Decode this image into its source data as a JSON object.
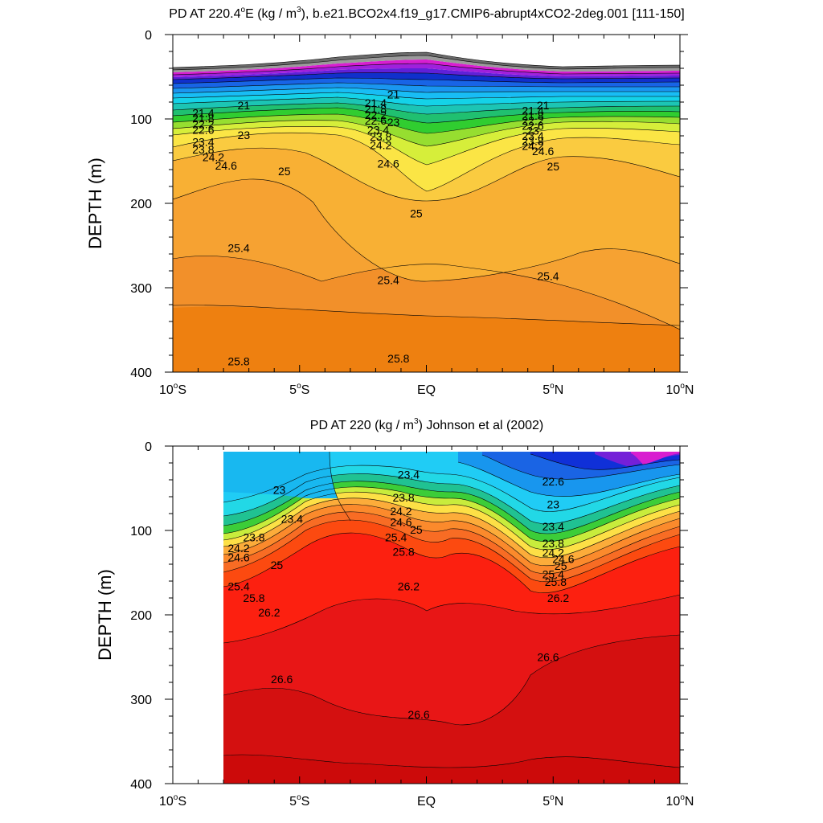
{
  "chart_data": [
    {
      "type": "filled-contour",
      "title": "PD AT 220.4°E (kg / m³), b.e21.BCO2x4.f19_g17.CMIP6-abrupt4xCO2-2deg.001 [111-150]",
      "title_parts": {
        "pre": "PD AT 220.4",
        "deg": "o",
        "mid": "E (kg / m",
        "sup": "3",
        "post": "), b.e21.BCO2x4.f19_g17.CMIP6-abrupt4xCO2-2deg.001 [111-150]"
      },
      "ylabel": "DEPTH (m)",
      "xlim": [
        -10,
        10
      ],
      "ylim": [
        0,
        400
      ],
      "y_inverted": true,
      "x_ticks": [
        {
          "value": -10,
          "num": "10",
          "hemi": "S"
        },
        {
          "value": -5,
          "num": "5",
          "hemi": "S"
        },
        {
          "value": 0,
          "num": "EQ",
          "hemi": ""
        },
        {
          "value": 5,
          "num": "5",
          "hemi": "N"
        },
        {
          "value": 10,
          "num": "10",
          "hemi": "N"
        }
      ],
      "y_ticks": [
        0,
        100,
        200,
        300,
        400
      ],
      "contour_labels": [
        {
          "text": "21",
          "x": -7.2,
          "y": 84
        },
        {
          "text": "21.4",
          "x": -8.8,
          "y": 93
        },
        {
          "text": "21.8",
          "x": -8.8,
          "y": 99
        },
        {
          "text": "22.2",
          "x": -8.8,
          "y": 106
        },
        {
          "text": "22.6",
          "x": -8.8,
          "y": 113
        },
        {
          "text": "23",
          "x": -7.2,
          "y": 119
        },
        {
          "text": "23.4",
          "x": -8.8,
          "y": 127
        },
        {
          "text": "23.8",
          "x": -8.8,
          "y": 136
        },
        {
          "text": "24.2",
          "x": -8.4,
          "y": 145
        },
        {
          "text": "24.6",
          "x": -7.9,
          "y": 155
        },
        {
          "text": "25",
          "x": -5.6,
          "y": 162
        },
        {
          "text": "25.4",
          "x": -7.4,
          "y": 253
        },
        {
          "text": "25.8",
          "x": -7.4,
          "y": 387
        },
        {
          "text": "21",
          "x": -1.3,
          "y": 71
        },
        {
          "text": "21.4",
          "x": -2.0,
          "y": 81
        },
        {
          "text": "21.8",
          "x": -2.0,
          "y": 88
        },
        {
          "text": "22.2",
          "x": -2.0,
          "y": 95
        },
        {
          "text": "22.6",
          "x": -2.0,
          "y": 102
        },
        {
          "text": "23",
          "x": -1.3,
          "y": 104
        },
        {
          "text": "23.4",
          "x": -1.9,
          "y": 113
        },
        {
          "text": "23.8",
          "x": -1.8,
          "y": 121
        },
        {
          "text": "24.2",
          "x": -1.8,
          "y": 131
        },
        {
          "text": "24.6",
          "x": -1.5,
          "y": 153
        },
        {
          "text": "25",
          "x": -0.4,
          "y": 212
        },
        {
          "text": "25.4",
          "x": -1.5,
          "y": 291
        },
        {
          "text": "25.8",
          "x": -1.1,
          "y": 384
        },
        {
          "text": "21",
          "x": 4.6,
          "y": 84
        },
        {
          "text": "21.4",
          "x": 4.2,
          "y": 90
        },
        {
          "text": "21.8",
          "x": 4.2,
          "y": 96
        },
        {
          "text": "22.2",
          "x": 4.2,
          "y": 102
        },
        {
          "text": "22.6",
          "x": 4.2,
          "y": 108
        },
        {
          "text": "23",
          "x": 4.2,
          "y": 114
        },
        {
          "text": "23.4",
          "x": 4.2,
          "y": 120
        },
        {
          "text": "23.8",
          "x": 4.2,
          "y": 126
        },
        {
          "text": "24.2",
          "x": 4.2,
          "y": 132
        },
        {
          "text": "24.6",
          "x": 4.6,
          "y": 138
        },
        {
          "text": "25",
          "x": 5.0,
          "y": 156
        },
        {
          "text": "25.4",
          "x": 4.8,
          "y": 286
        }
      ]
    },
    {
      "type": "filled-contour",
      "title": "PD AT 220 (kg / m³) Johnson et al (2002)",
      "title_parts": {
        "pre": "PD AT 220 (kg / m",
        "deg": "",
        "mid": "",
        "sup": "3",
        "post": ") Johnson et al (2002)"
      },
      "ylabel": "DEPTH (m)",
      "xlim": [
        -10,
        10
      ],
      "ylim": [
        0,
        400
      ],
      "y_inverted": true,
      "data_x_range": [
        -8,
        10
      ],
      "x_ticks": [
        {
          "value": -10,
          "num": "10",
          "hemi": "S"
        },
        {
          "value": -5,
          "num": "5",
          "hemi": "S"
        },
        {
          "value": 0,
          "num": "EQ",
          "hemi": ""
        },
        {
          "value": 5,
          "num": "5",
          "hemi": "N"
        },
        {
          "value": 10,
          "num": "10",
          "hemi": "N"
        }
      ],
      "y_ticks": [
        0,
        100,
        200,
        300,
        400
      ],
      "contour_labels": [
        {
          "text": "23",
          "x": -5.8,
          "y": 52
        },
        {
          "text": "23.4",
          "x": -5.3,
          "y": 86
        },
        {
          "text": "23.8",
          "x": -6.8,
          "y": 108
        },
        {
          "text": "24.2",
          "x": -7.4,
          "y": 121
        },
        {
          "text": "24.6",
          "x": -7.4,
          "y": 132
        },
        {
          "text": "25",
          "x": -5.9,
          "y": 141
        },
        {
          "text": "25.4",
          "x": -7.4,
          "y": 166
        },
        {
          "text": "25.8",
          "x": -6.8,
          "y": 180
        },
        {
          "text": "26.2",
          "x": -6.2,
          "y": 197
        },
        {
          "text": "26.6",
          "x": -5.7,
          "y": 276
        },
        {
          "text": "23.4",
          "x": -0.7,
          "y": 34
        },
        {
          "text": "23.8",
          "x": -0.9,
          "y": 61
        },
        {
          "text": "24.2",
          "x": -1.0,
          "y": 77
        },
        {
          "text": "24.6",
          "x": -1.0,
          "y": 90
        },
        {
          "text": "25",
          "x": -0.4,
          "y": 99
        },
        {
          "text": "25.4",
          "x": -1.2,
          "y": 108
        },
        {
          "text": "25.8",
          "x": -0.9,
          "y": 125
        },
        {
          "text": "26.2",
          "x": -0.7,
          "y": 166
        },
        {
          "text": "26.6",
          "x": -0.3,
          "y": 318
        },
        {
          "text": "22.6",
          "x": 5.0,
          "y": 42
        },
        {
          "text": "23",
          "x": 5.0,
          "y": 69
        },
        {
          "text": "23.4",
          "x": 5.0,
          "y": 95
        },
        {
          "text": "23.8",
          "x": 5.0,
          "y": 115
        },
        {
          "text": "24.2",
          "x": 5.0,
          "y": 126
        },
        {
          "text": "24.6",
          "x": 5.4,
          "y": 134
        },
        {
          "text": "25",
          "x": 5.3,
          "y": 142
        },
        {
          "text": "25.4",
          "x": 5.0,
          "y": 152
        },
        {
          "text": "25.8",
          "x": 5.1,
          "y": 161
        },
        {
          "text": "26.2",
          "x": 5.2,
          "y": 180
        },
        {
          "text": "26.6",
          "x": 4.8,
          "y": 250
        }
      ]
    }
  ]
}
